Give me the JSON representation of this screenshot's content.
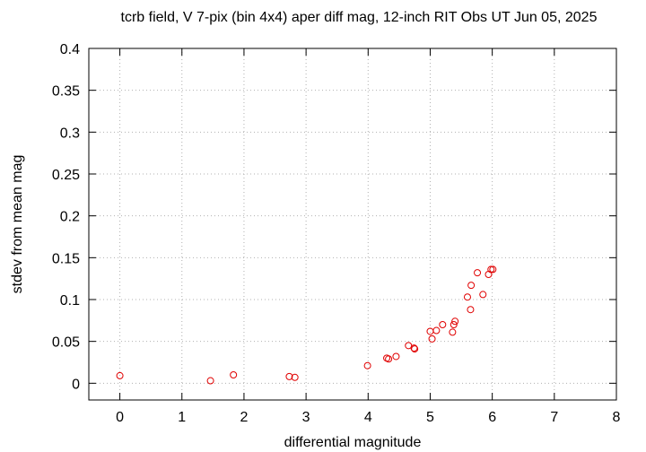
{
  "chart_data": {
    "type": "scatter",
    "title": "tcrb field, V 7-pix (bin 4x4) aper diff mag,  12-inch RIT Obs UT Jun 05, 2025",
    "x_label": "differential magnitude",
    "y_label": "stdev from mean mag",
    "xlim": [
      -0.5,
      8
    ],
    "xticks": [
      0,
      1,
      2,
      3,
      4,
      5,
      6,
      7,
      8
    ],
    "ylim": [
      -0.02,
      0.4
    ],
    "yticks": [
      0,
      0.05,
      0.1,
      0.15,
      0.2,
      0.25,
      0.3,
      0.35,
      0.4
    ],
    "grid": true,
    "series": [
      {
        "color": "#e00000",
        "x": [
          0,
          1.46,
          1.83,
          2.73,
          2.82,
          3.99,
          4.3,
          4.33,
          4.45,
          4.65,
          4.74,
          4.75,
          5.0,
          5.03,
          5.1,
          5.2,
          5.36,
          5.38,
          5.4,
          5.6,
          5.65,
          5.66,
          5.76,
          5.85,
          5.94,
          5.98,
          6.01
        ],
        "values": [
          0.009,
          0.003,
          0.01,
          0.008,
          0.007,
          0.021,
          0.03,
          0.029,
          0.032,
          0.045,
          0.042,
          0.041,
          0.062,
          0.053,
          0.063,
          0.07,
          0.061,
          0.07,
          0.074,
          0.103,
          0.088,
          0.117,
          0.132,
          0.106,
          0.13,
          0.136,
          0.136
        ]
      }
    ]
  }
}
